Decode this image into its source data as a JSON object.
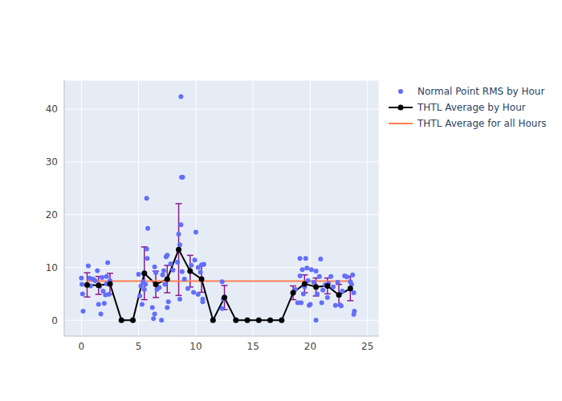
{
  "chart_data": {
    "type": "scatter",
    "grid": true,
    "legend": "right",
    "xlim": [
      -1.5,
      26
    ],
    "xticks": [
      0,
      5,
      10,
      15,
      20,
      25
    ],
    "ylim": [
      -3,
      45.5
    ],
    "yticks": [
      0,
      10,
      20,
      30,
      40
    ],
    "series": [
      {
        "name": "Normal Point RMS by Hour",
        "type": "scatter",
        "marker": "circle",
        "color": "#636efa",
        "x": [
          0.0,
          0.05,
          0.1,
          0.15,
          0.6,
          0.7,
          0.8,
          1.0,
          1.2,
          1.4,
          1.5,
          1.6,
          1.7,
          1.8,
          1.9,
          2.0,
          2.1,
          2.2,
          2.3,
          2.4,
          2.5,
          2.2,
          5.0,
          5.1,
          5.2,
          5.3,
          5.4,
          5.5,
          5.6,
          5.7,
          5.75,
          5.8,
          5.7,
          6.2,
          6.3,
          6.4,
          6.5,
          6.4,
          6.6,
          6.8,
          7.0,
          7.1,
          7.2,
          7.3,
          7.4,
          7.5,
          7.5,
          7.6,
          7.8,
          8.0,
          8.4,
          8.5,
          8.6,
          8.7,
          8.75,
          8.85,
          8.7,
          8.6,
          8.8,
          9.0,
          9.3,
          9.6,
          9.8,
          9.9,
          10.0,
          10.2,
          10.2,
          10.4,
          10.5,
          10.6,
          10.6,
          10.7,
          12.3,
          12.3,
          12.4,
          18.7,
          18.9,
          19.1,
          19.1,
          19.2,
          19.3,
          19.4,
          19.5,
          19.6,
          19.7,
          19.8,
          19.9,
          20.0,
          20.1,
          20.3,
          20.5,
          20.5,
          20.6,
          20.8,
          20.9,
          21.0,
          21.1,
          21.3,
          21.5,
          21.6,
          21.8,
          22.0,
          22.2,
          22.4,
          22.6,
          22.7,
          22.8,
          23.0,
          23.2,
          23.5,
          23.6,
          23.7,
          23.8,
          23.8,
          23.85
        ],
        "values": [
          8.0,
          6.8,
          5.0,
          1.7,
          10.3,
          8.0,
          6.5,
          7.8,
          7.5,
          9.4,
          3.0,
          6.4,
          1.2,
          8.1,
          5.5,
          3.2,
          4.8,
          8.3,
          10.9,
          4.9,
          7.5,
          6.9,
          8.7,
          4.6,
          6.5,
          3.0,
          7.3,
          5.8,
          6.8,
          23.1,
          11.7,
          17.4,
          13.5,
          2.4,
          0.3,
          10.1,
          9.0,
          1.2,
          5.8,
          6.2,
          0.0,
          8.6,
          9.4,
          6.8,
          12.0,
          12.3,
          2.4,
          3.5,
          10.7,
          9.5,
          11.0,
          16.3,
          14.3,
          42.4,
          27.1,
          27.1,
          18.1,
          4.0,
          9.2,
          7.8,
          6.0,
          10.4,
          5.3,
          11.4,
          16.7,
          10.0,
          4.9,
          9.1,
          10.5,
          4.0,
          3.5,
          10.6,
          7.3,
          2.2,
          4.0,
          5.8,
          3.3,
          8.4,
          11.7,
          3.3,
          9.6,
          5.0,
          6.3,
          11.7,
          9.9,
          7.5,
          2.8,
          3.0,
          9.6,
          7.2,
          0.0,
          9.3,
          5.0,
          8.3,
          11.6,
          3.3,
          5.7,
          6.7,
          4.3,
          7.0,
          8.3,
          6.3,
          2.8,
          7.2,
          2.9,
          2.7,
          5.5,
          8.4,
          8.2,
          7.3,
          6.8,
          8.6,
          5.2,
          1.1,
          1.7
        ]
      },
      {
        "name": "THTL Average by Hour",
        "type": "line",
        "marker": "circle",
        "line_style": "solid",
        "color": "#000000",
        "x": [
          0.5,
          1.5,
          2.5,
          3.5,
          4.5,
          5.5,
          6.5,
          7.5,
          8.5,
          9.5,
          10.5,
          11.5,
          12.5,
          13.5,
          14.5,
          15.5,
          16.5,
          17.5,
          18.5,
          19.5,
          20.5,
          21.5,
          22.5,
          23.5
        ],
        "values": [
          6.7,
          6.6,
          6.9,
          0,
          0,
          8.9,
          6.8,
          7.8,
          13.4,
          9.3,
          7.8,
          0,
          4.3,
          0,
          0,
          0,
          0,
          0,
          5.2,
          6.9,
          6.3,
          6.5,
          4.8,
          6.0
        ],
        "errors": [
          2.3,
          1.7,
          2.0,
          0,
          0,
          5.0,
          2.5,
          2.6,
          8.7,
          3.0,
          2.5,
          0,
          2.3,
          0,
          0,
          0,
          0,
          0,
          1.3,
          1.7,
          1.7,
          1.5,
          2.0,
          2.3
        ]
      },
      {
        "name": "THTL Average for all Hours",
        "type": "line",
        "line_style": "solid",
        "color": "#ff7f50",
        "x": [
          0.5,
          23.5
        ],
        "values": [
          7.4,
          7.4
        ]
      }
    ]
  }
}
